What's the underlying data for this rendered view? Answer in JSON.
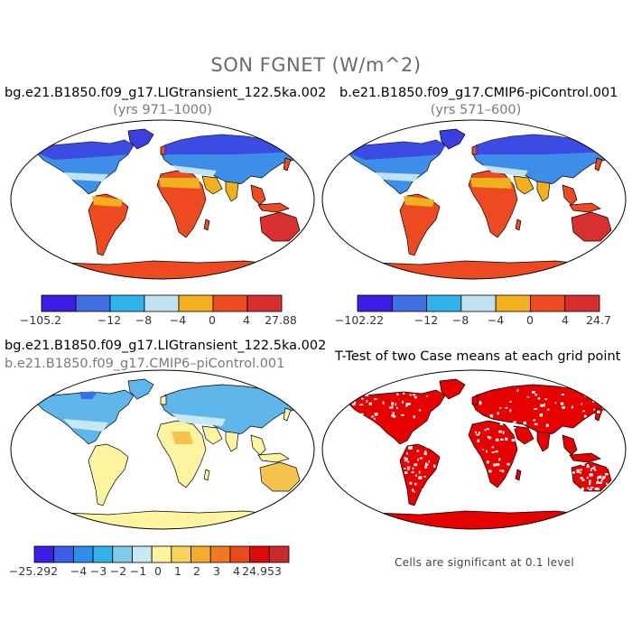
{
  "figure": {
    "title": "SON FGNET (W/m^2)"
  },
  "panels": {
    "top_left": {
      "title": "bg.e21.B1850.f09_g17.LIGtransient_122.5ka.002",
      "subtitle": "(yrs 971–1000)"
    },
    "top_right": {
      "title": "b.e21.B1850.f09_g17.CMIP6-piControl.001",
      "subtitle": "(yrs 571–600)"
    },
    "bottom_left": {
      "title": "bg.e21.B1850.f09_g17.LIGtransient_122.5ka.002",
      "subtitle": "b.e21.B1850.f09_g17.CMIP6–piControl.001"
    },
    "bottom_right": {
      "title": "T-Test of two Case means at each grid point",
      "note": "Cells are significant at 0.1 level"
    }
  },
  "colorbars": {
    "top_left": {
      "colors": [
        "#3a1ee6",
        "#3f6fe0",
        "#2fb3ea",
        "#bfe3f2",
        "#f2b01e",
        "#ef4a22",
        "#d52f2f"
      ],
      "labels": [
        "−105.2",
        "−12",
        "−8",
        "−4",
        "0",
        "4",
        "27.88"
      ]
    },
    "top_right": {
      "colors": [
        "#3a1ee6",
        "#3f6fe0",
        "#2fb3ea",
        "#bfe3f2",
        "#f2b01e",
        "#ef4a22",
        "#d52f2f"
      ],
      "labels": [
        "−102.22",
        "−12",
        "−8",
        "−4",
        "0",
        "4",
        "24.7"
      ]
    },
    "bottom_left": {
      "colors": [
        "#3a1ee6",
        "#3a5ee8",
        "#2f8ee8",
        "#31b2ea",
        "#7fcbe9",
        "#c6e8f2",
        "#fdf4a0",
        "#f8d35a",
        "#f4ac2c",
        "#ef7a22",
        "#e84a1c",
        "#dd0a0a",
        "#c92a2a"
      ],
      "labels": [
        "−25.292",
        "−4",
        "−3",
        "−2",
        "−1",
        "0",
        "1",
        "2",
        "3",
        "4",
        "24.953"
      ]
    },
    "significance_color": "#e60000"
  },
  "palettes": {
    "field_top": {
      "high_lat": "#3c3fe0",
      "mid_lat": "#3d8ee8",
      "sub_lat": "#bfe3f2",
      "warm": "#f2b01e",
      "tropics": "#ee4a22",
      "hot": "#d83030",
      "ice": "#ee4a22"
    },
    "diff": {
      "north": "#5fb6ea",
      "pale": "#c6e8f2",
      "yellow": "#fdf4a0",
      "orange": "#f6c24e",
      "blue": "#3a6ee6",
      "ice": "#fdf4a0"
    }
  }
}
